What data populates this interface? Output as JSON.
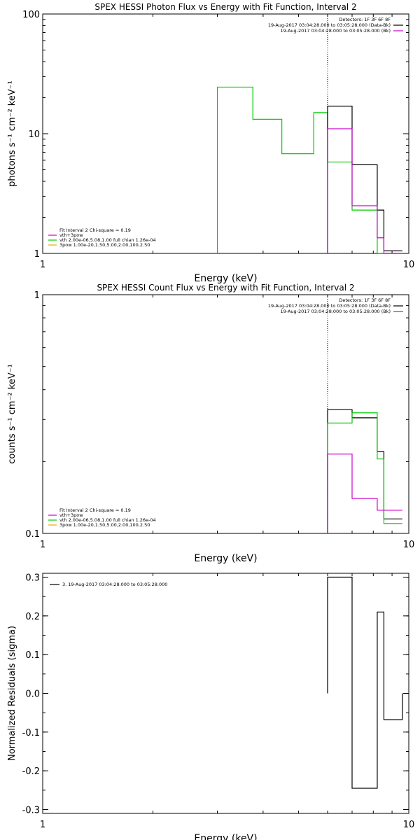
{
  "chart_data": [
    {
      "type": "line",
      "title": "SPEX HESSI Photon Flux vs Energy with Fit Function, Interval 2",
      "xlabel": "Energy (keV)",
      "ylabel": "photons s⁻¹ cm⁻² keV⁻¹",
      "xscale": "log",
      "yscale": "log",
      "xlim": [
        1,
        10
      ],
      "ylim": [
        1,
        100
      ],
      "xticks": [
        1,
        10
      ],
      "yticks": [
        1,
        10,
        100
      ],
      "vline": 6,
      "legend_top_right": [
        {
          "text": "Detectors: 1F 3F 6F 8F",
          "color": "#000000"
        },
        {
          "text": "19-Aug-2017 03:04:28.000 to 03:05:28.000 (Data-Bk)",
          "color": "#000000"
        },
        {
          "text": "19-Aug-2017 03:04:28.000 to 03:05:28.000 (Bk)",
          "color": "#cc00cc"
        }
      ],
      "legend_bottom_left": [
        {
          "text": "Fit Interval 2   Chi-square = 0.19",
          "color": "#000000"
        },
        {
          "text": "vth+3pow",
          "color": "#cc00cc"
        },
        {
          "text": "vth 2.00e-06,5.08,1.00   full chian 1.26e-04",
          "color": "#00cc00"
        },
        {
          "text": "3pow 1.00e-20,1.50,5.00,2.00,100,2.50",
          "color": "#e6a800"
        }
      ],
      "series": [
        {
          "color": "#00cc00",
          "edges": [
            3.0,
            3.75,
            4.5,
            5.5,
            6.0,
            7.0,
            8.2,
            8.55,
            9.6
          ],
          "values": [
            24.5,
            13.2,
            6.8,
            15.0,
            5.8,
            2.3,
            0,
            1.0
          ]
        },
        {
          "color": "#000000",
          "edges": [
            6.0,
            7.0,
            8.2,
            8.55,
            9.6
          ],
          "values": [
            17.0,
            5.5,
            2.3,
            1.05
          ]
        },
        {
          "color": "#cc00cc",
          "edges": [
            6.0,
            7.0,
            8.2,
            8.55,
            9.6
          ],
          "values": [
            11.0,
            2.5,
            1.35,
            1.0
          ]
        }
      ]
    },
    {
      "type": "line",
      "title": "SPEX HESSI Count Flux vs Energy with Fit Function, Interval 2",
      "xlabel": "Energy (keV)",
      "ylabel": "counts s⁻¹ cm⁻² keV⁻¹",
      "xscale": "log",
      "yscale": "log",
      "xlim": [
        1,
        10
      ],
      "ylim": [
        0.1,
        1.0
      ],
      "xticks": [
        1,
        10
      ],
      "yticks": [
        0.1,
        1.0
      ],
      "vline": 6,
      "legend_top_right": [
        {
          "text": "Detectors: 1F 3F 6F 8F",
          "color": "#000000"
        },
        {
          "text": "19-Aug-2017 03:04:28.000 to 03:05:28.000 (Data-Bk)",
          "color": "#000000"
        },
        {
          "text": "19-Aug-2017 03:04:28.000 to 03:05:28.000 (Bk)",
          "color": "#cc00cc"
        }
      ],
      "legend_bottom_left": [
        {
          "text": "Fit Interval 2   Chi-square = 0.19",
          "color": "#000000"
        },
        {
          "text": "vth+3pow",
          "color": "#cc00cc"
        },
        {
          "text": "vth 2.00e-06,5.08,1.00   full chian 1.26e-04",
          "color": "#00cc00"
        },
        {
          "text": "3pow 1.00e-20,1.50,5.00,2.00,100,2.50",
          "color": "#e6a800"
        }
      ],
      "series": [
        {
          "color": "#000000",
          "edges": [
            6.0,
            7.0,
            8.2,
            8.55,
            9.6
          ],
          "values": [
            0.33,
            0.305,
            0.22,
            0.115
          ]
        },
        {
          "color": "#00cc00",
          "edges": [
            6.0,
            7.0,
            8.2,
            8.55,
            9.6
          ],
          "values": [
            0.29,
            0.32,
            0.205,
            0.11
          ]
        },
        {
          "color": "#cc00cc",
          "edges": [
            6.0,
            7.0,
            8.2,
            8.55,
            9.6
          ],
          "values": [
            0.215,
            0.14,
            0.125,
            0.125
          ]
        }
      ]
    },
    {
      "type": "line",
      "title": "",
      "xlabel": "Energy (keV)",
      "ylabel": "Normalized Residuals (sigma)",
      "xscale": "log",
      "yscale": "linear",
      "xlim": [
        1,
        10
      ],
      "ylim": [
        -0.31,
        0.31
      ],
      "xticks": [
        1,
        10
      ],
      "yticks": [
        -0.3,
        -0.2,
        -0.1,
        0.0,
        0.1,
        0.2,
        0.3
      ],
      "ytick_labels": [
        "-0.3",
        "-0.2",
        "-0.1",
        "0.0",
        "0.1",
        "0.2",
        "0.3"
      ],
      "legend_top_left": [
        {
          "text": "3. 19-Aug-2017 03:04:28.000 to 03:05:28.000",
          "color": "#000000"
        }
      ],
      "series": [
        {
          "color": "#000000",
          "edges": [
            6.0,
            7.0,
            8.2,
            8.55,
            9.6
          ],
          "values": [
            0.3,
            -0.245,
            0.21,
            -0.068
          ]
        }
      ]
    }
  ]
}
